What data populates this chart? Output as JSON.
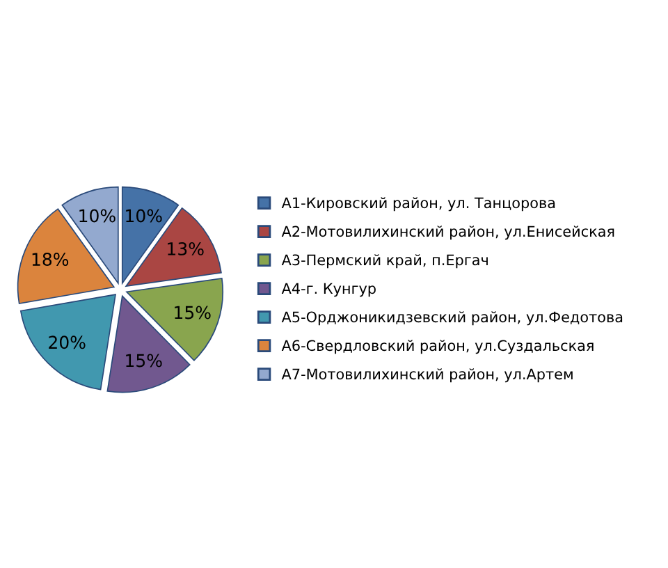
{
  "chart_data": {
    "type": "pie",
    "categories": [
      "A1-Кировский район, ул. Танцорова",
      "A2-Мотовилихинский район, ул.Енисейская",
      "A3-Пермский край, п.Ергач",
      "A4-г. Кунгур",
      "A5-Орджоникидзевский район, ул.Федотова",
      "A6-Свердловский район, ул.Суздальская",
      "A7-Мотовилихинский район, ул.Артем"
    ],
    "values": [
      10,
      13,
      15,
      15,
      20,
      18,
      10
    ],
    "value_labels": [
      "10%",
      "13%",
      "15%",
      "15%",
      "20%",
      "18%",
      "10%"
    ],
    "colors": [
      "#4572a7",
      "#aa4643",
      "#89a54e",
      "#71588f",
      "#4198af",
      "#db843d",
      "#93a9cf"
    ],
    "legend": "right"
  }
}
